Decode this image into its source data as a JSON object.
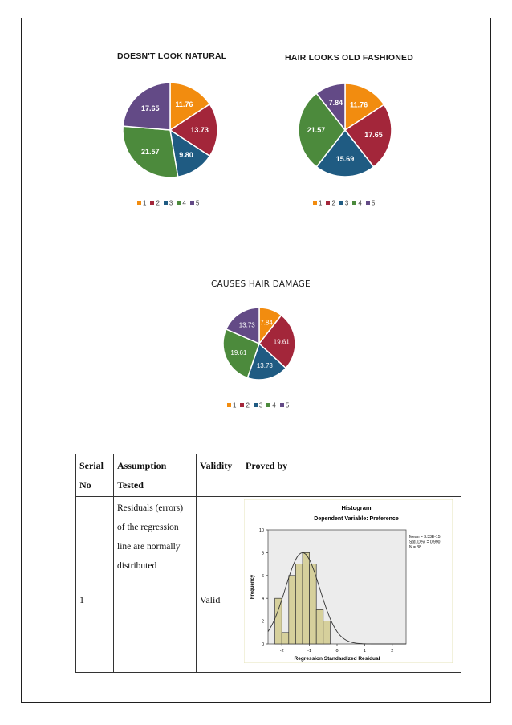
{
  "chart_data": [
    {
      "type": "pie",
      "title": "DOESN'T LOOK NATURAL",
      "categories": [
        "1",
        "2",
        "3",
        "4",
        "5"
      ],
      "values": [
        11.76,
        13.73,
        9.8,
        21.57,
        17.65
      ],
      "labels": [
        "11.76",
        "13.73",
        "9.80",
        "21.57",
        "17.65"
      ],
      "colors": [
        "#f28c0f",
        "#a3263a",
        "#1f5b82",
        "#4c8a3c",
        "#634a86"
      ],
      "legend": "bottom"
    },
    {
      "type": "pie",
      "title": "HAIR LOOKS OLD FASHIONED",
      "categories": [
        "1",
        "2",
        "3",
        "4",
        "5"
      ],
      "values": [
        11.76,
        17.65,
        15.69,
        21.57,
        7.84
      ],
      "labels": [
        "11.76",
        "17.65",
        "15.69",
        "21.57",
        "7.84"
      ],
      "colors": [
        "#f28c0f",
        "#a3263a",
        "#1f5b82",
        "#4c8a3c",
        "#634a86"
      ],
      "legend": "bottom"
    },
    {
      "type": "pie",
      "title": "CAUSES HAIR DAMAGE",
      "categories": [
        "1",
        "2",
        "3",
        "4",
        "5"
      ],
      "values": [
        7.84,
        19.61,
        13.73,
        19.61,
        13.73
      ],
      "labels": [
        "7.84",
        "19.61",
        "13.73",
        "19.61",
        "13.73"
      ],
      "colors": [
        "#f28c0f",
        "#a3263a",
        "#1f5b82",
        "#4c8a3c",
        "#634a86"
      ],
      "legend": "bottom"
    },
    {
      "type": "bar",
      "title": "Histogram",
      "subtitle": "Dependent Variable: Preference",
      "xlabel": "Regression Standardized Residual",
      "ylabel": "Frequency",
      "x_ticks": [
        "-2",
        "-1",
        "0",
        "1",
        "2"
      ],
      "y_ticks": [
        "0",
        "2",
        "4",
        "6",
        "8",
        "10"
      ],
      "ylim": [
        0,
        10
      ],
      "xlim": [
        -2.5,
        2.5
      ],
      "bins": [
        {
          "from": -2.25,
          "to": -2.0,
          "count": 4
        },
        {
          "from": -2.0,
          "to": -1.75,
          "count": 1
        },
        {
          "from": -1.75,
          "to": -1.5,
          "count": 6
        },
        {
          "from": -1.5,
          "to": -1.25,
          "count": 7
        },
        {
          "from": -1.25,
          "to": -1.0,
          "count": 8
        },
        {
          "from": -1.0,
          "to": -0.75,
          "count": 7
        },
        {
          "from": -0.75,
          "to": -0.5,
          "count": 3
        },
        {
          "from": -0.5,
          "to": -0.25,
          "count": 2
        }
      ],
      "stats": [
        "Mean = 3.33E-15",
        "Std. Dev. = 0.990",
        "N = 38"
      ],
      "normal_curve": true,
      "bar_color": "#d6d09c",
      "plot_bg": "#ececec"
    }
  ],
  "table": {
    "headers": {
      "serial_line1": "Serial",
      "serial_line2": "No",
      "assumption_line1": "Assumption",
      "assumption_line2": "Tested",
      "validity": "Validity",
      "proved_by": "Proved by"
    },
    "row": {
      "serial": "1",
      "assumption_lines": [
        "Residuals (errors)",
        "of the regression",
        "line are normally",
        "distributed"
      ],
      "validity": "Valid"
    }
  }
}
